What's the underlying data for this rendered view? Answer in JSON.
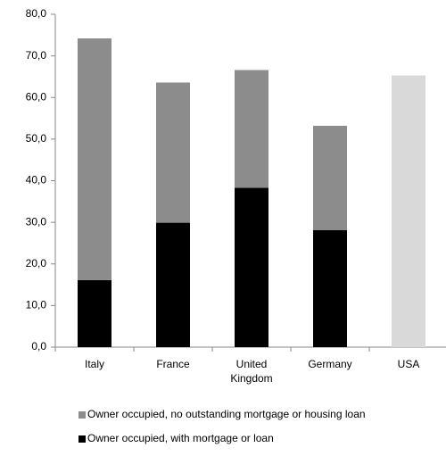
{
  "chart_data": {
    "type": "bar",
    "stacked": true,
    "categories": [
      "Italy",
      "France",
      "United Kingdom",
      "Germany",
      "USA"
    ],
    "series": [
      {
        "name": "Owner occupied, with mortgage or loan",
        "color": "#000000",
        "values": [
          16.1,
          29.9,
          38.3,
          28.1,
          null
        ]
      },
      {
        "name": "Owner occupied, no outstanding mortgage or housing loan",
        "color": "#8c8c8c",
        "values": [
          58.1,
          33.7,
          28.3,
          25.1,
          65.3
        ],
        "colors": [
          "#8c8c8c",
          "#8c8c8c",
          "#8c8c8c",
          "#8c8c8c",
          "#d9d9d9"
        ]
      }
    ],
    "ylim": [
      0,
      80
    ],
    "yticks": [
      {
        "value": 0,
        "label": "0,0"
      },
      {
        "value": 10,
        "label": "10,0"
      },
      {
        "value": 20,
        "label": "20,0"
      },
      {
        "value": 30,
        "label": "30,0"
      },
      {
        "value": 40,
        "label": "40,0"
      },
      {
        "value": 50,
        "label": "50,0"
      },
      {
        "value": 60,
        "label": "60,0"
      },
      {
        "value": 70,
        "label": "70,0"
      },
      {
        "value": 80,
        "label": "80,0"
      }
    ],
    "grid": false,
    "legend": "bottom"
  }
}
